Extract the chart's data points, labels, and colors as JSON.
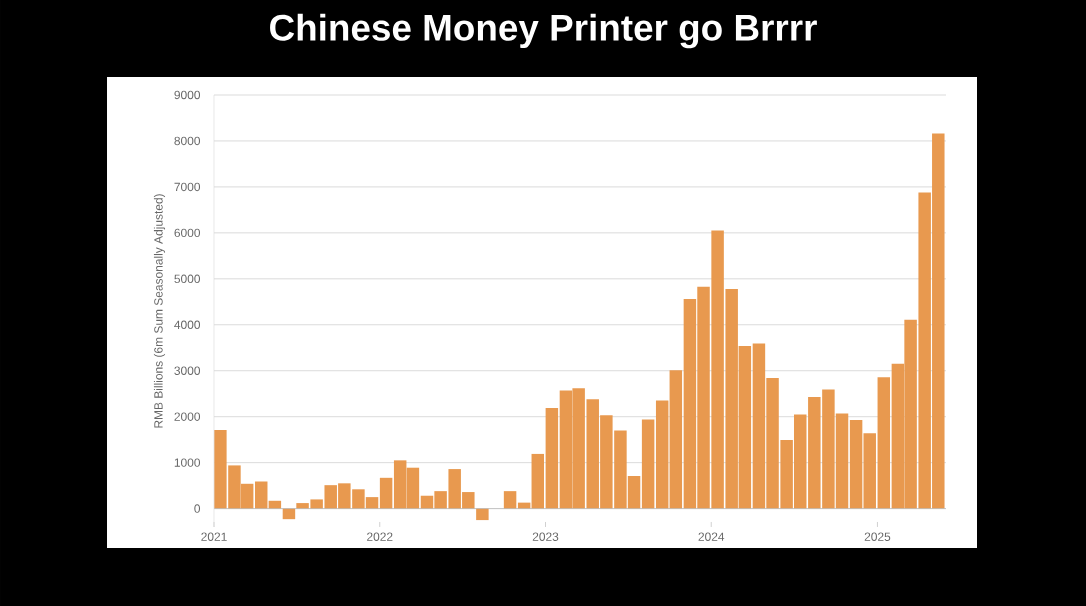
{
  "chart_data": {
    "type": "bar",
    "title": "Chinese Money Printer go Brrrr",
    "ylabel": "RMB  Billions (6m Sum Seasonally Adjusted)",
    "x": [
      "2021-01-15",
      "2021-02-15",
      "2021-03-15",
      "2021-04-15",
      "2021-05-15",
      "2021-06-15",
      "2021-07-15",
      "2021-08-15",
      "2021-09-15",
      "2021-10-15",
      "2021-11-15",
      "2021-12-15",
      "2022-01-15",
      "2022-02-15",
      "2022-03-15",
      "2022-04-15",
      "2022-05-15",
      "2022-06-15",
      "2022-07-15",
      "2022-08-15",
      "2022-09-15",
      "2022-10-15",
      "2022-11-15",
      "2022-12-15",
      "2023-01-15",
      "2023-02-15",
      "2023-03-15",
      "2023-04-15",
      "2023-05-15",
      "2023-06-15",
      "2023-07-15",
      "2023-08-15",
      "2023-09-15",
      "2023-10-15",
      "2023-11-15",
      "2023-12-15",
      "2024-01-15",
      "2024-02-15",
      "2024-03-15",
      "2024-04-15",
      "2024-05-15",
      "2024-06-15",
      "2024-07-15",
      "2024-08-15",
      "2024-09-15",
      "2024-10-15",
      "2024-11-15",
      "2024-12-15",
      "2025-01-15",
      "2025-02-15",
      "2025-03-15",
      "2025-04-15",
      "2025-05-15"
    ],
    "values": [
      1710,
      940,
      540,
      590,
      170,
      -230,
      120,
      200,
      510,
      550,
      420,
      250,
      670,
      1050,
      890,
      280,
      380,
      860,
      360,
      -250,
      0,
      380,
      130,
      1190,
      2190,
      2570,
      2620,
      2380,
      2030,
      1700,
      710,
      1940,
      2350,
      3010,
      4560,
      4830,
      6050,
      4780,
      3540,
      3590,
      2840,
      1490,
      2050,
      2430,
      2590,
      2070,
      1930,
      1640,
      2860,
      3150,
      4110,
      6880,
      8160
    ],
    "color": "#e8994f",
    "xlim": [
      "2021-01-01",
      "2025-06-01"
    ],
    "xticks": [
      "2021",
      "2022",
      "2023",
      "2024",
      "2025"
    ],
    "ylim": [
      -400,
      9000
    ],
    "yticks": [
      0,
      1000,
      2000,
      3000,
      4000,
      5000,
      6000,
      7000,
      8000,
      9000
    ],
    "grid": "y"
  }
}
